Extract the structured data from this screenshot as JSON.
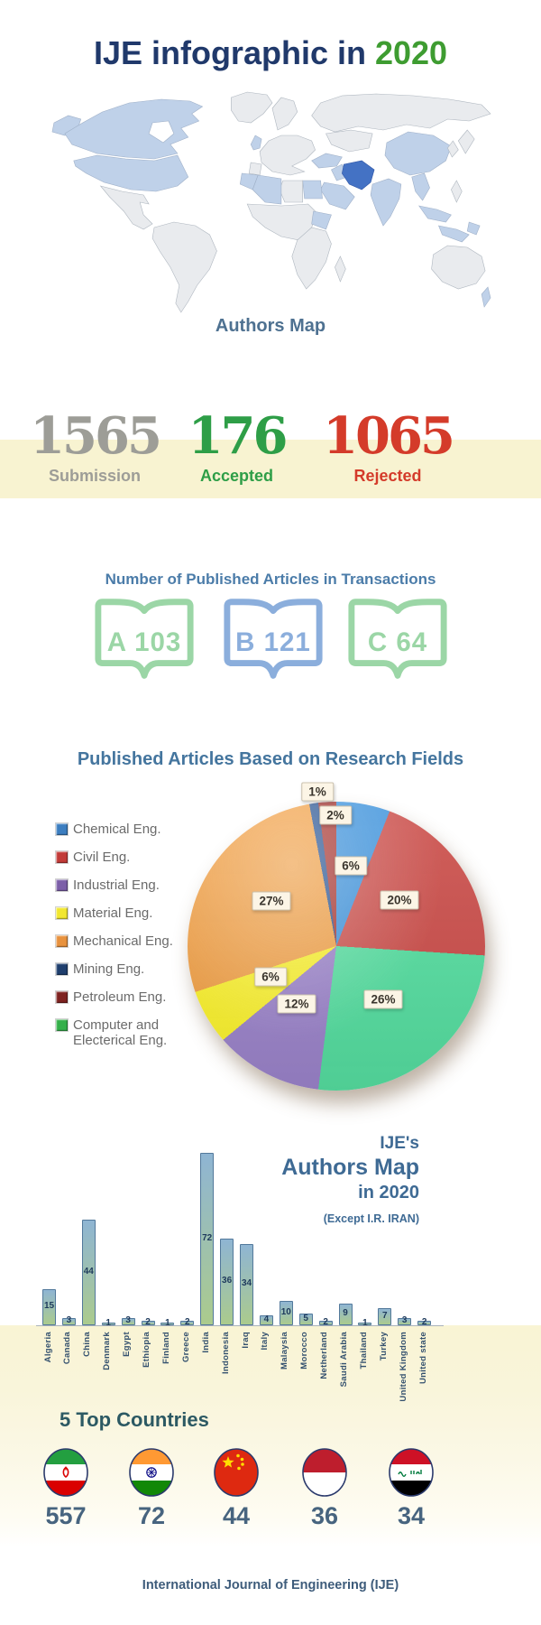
{
  "title": {
    "prefix": "IJE infographic in ",
    "year": "2020"
  },
  "map": {
    "caption": "Authors Map",
    "colors": {
      "land": "#E9EBEE",
      "border": "#AEB6BF",
      "highlight": "#BFD1E9",
      "iran": "#4472C4"
    }
  },
  "stats": [
    {
      "value": "1565",
      "label": "Submission",
      "color": "#9D9D97"
    },
    {
      "value": "176",
      "label": "Accepted",
      "color": "#2E9E47"
    },
    {
      "value": "1065",
      "label": "Rejected",
      "color": "#D43B2A"
    }
  ],
  "transactions": {
    "heading": "Number of Published Articles in Transactions",
    "books": [
      {
        "letter": "A",
        "count": "103",
        "color": "#9BD6A6"
      },
      {
        "letter": "B",
        "count": "121",
        "color": "#8BAEDC"
      },
      {
        "letter": "C",
        "count": "64",
        "color": "#9BD6A6"
      }
    ]
  },
  "pie": {
    "heading": "Published Articles Based on Research Fields",
    "legend": [
      {
        "label": "Chemical Eng.",
        "color": "#3C7EC0"
      },
      {
        "label": "Civil Eng.",
        "color": "#C23B38"
      },
      {
        "label": "Industrial Eng.",
        "color": "#7C5FA8"
      },
      {
        "label": "Material Eng.",
        "color": "#F2E730"
      },
      {
        "label": "Mechanical Eng.",
        "color": "#E8923E"
      },
      {
        "label": "Mining Eng.",
        "color": "#1F3F6E"
      },
      {
        "label": "Petroleum Eng.",
        "color": "#7E2220"
      },
      {
        "label": "Computer and",
        "label2": "Electerical Eng.",
        "color": "#34B04A"
      }
    ],
    "slices": [
      {
        "field": "Chemical Eng.",
        "pct": 6,
        "color": "#3E93DC",
        "label": "6%"
      },
      {
        "field": "Civil Eng.",
        "pct": 20,
        "color": "#CC4E4A",
        "label": "20%"
      },
      {
        "field": "Computer and Electerical Eng.",
        "pct": 26,
        "color": "#56DFA1",
        "label": "26%"
      },
      {
        "field": "Industrial Eng.",
        "pct": 12,
        "color": "#9C84CB",
        "label": "12%"
      },
      {
        "field": "Material Eng.",
        "pct": 6,
        "color": "#FCF32F",
        "label": "6%"
      },
      {
        "field": "Mechanical Eng.",
        "pct": 27,
        "color": "#F2A147",
        "label": "27%"
      },
      {
        "field": "Mining Eng.",
        "pct": 1,
        "color": "#2C5694",
        "label": "1%"
      },
      {
        "field": "Petroleum Eng.",
        "pct": 2,
        "color": "#A83631",
        "label": "2%"
      }
    ]
  },
  "bar_chart": {
    "title_lines": [
      "IJE's",
      "Authors Map",
      "in 2020",
      "(Except I.R. IRAN)"
    ],
    "categories": [
      "Algeria",
      "Canada",
      "China",
      "Denmark",
      "Egypt",
      "Ethiopia",
      "Finland",
      "Greece",
      "India",
      "Indonesia",
      "Iraq",
      "Italy",
      "Malaysia",
      "Morocco",
      "Netherland",
      "Saudi Arabia",
      "Thailand",
      "Turkey",
      "United Kingdom",
      "United state"
    ],
    "values": [
      15,
      3,
      44,
      1,
      3,
      2,
      1,
      2,
      72,
      36,
      34,
      4,
      10,
      5,
      2,
      9,
      1,
      7,
      3,
      2
    ],
    "bar_gradient": [
      "#8FB5D3",
      "#ABCB8D"
    ]
  },
  "top_countries": {
    "heading": "5 Top Countries",
    "entries": [
      {
        "country": "Iran",
        "value": "557"
      },
      {
        "country": "India",
        "value": "72"
      },
      {
        "country": "China",
        "value": "44"
      },
      {
        "country": "Indonesia",
        "value": "36"
      },
      {
        "country": "Iraq",
        "value": "34"
      }
    ]
  },
  "footer": "International Journal of Engineering (IJE)",
  "chart_data": [
    {
      "type": "pie",
      "title": "Published Articles Based on Research Fields",
      "labels": [
        "Chemical Eng.",
        "Civil Eng.",
        "Industrial Eng.",
        "Material Eng.",
        "Mechanical Eng.",
        "Mining Eng.",
        "Petroleum Eng.",
        "Computer and Electerical Eng."
      ],
      "values": [
        6,
        20,
        12,
        6,
        27,
        1,
        2,
        26
      ],
      "unit": "%",
      "legend_position": "left",
      "clockwise_from_top": [
        "Chemical Eng. 6%",
        "Civil Eng. 20%",
        "Computer and Electerical Eng. 26%",
        "Industrial Eng. 12%",
        "Material Eng. 6%",
        "Mechanical Eng. 27%",
        "Mining Eng. 1%",
        "Petroleum Eng. 2%"
      ]
    },
    {
      "type": "bar",
      "title": "IJE's Authors Map in 2020 (Except I.R. IRAN)",
      "categories": [
        "Algeria",
        "Canada",
        "China",
        "Denmark",
        "Egypt",
        "Ethiopia",
        "Finland",
        "Greece",
        "India",
        "Indonesia",
        "Iraq",
        "Italy",
        "Malaysia",
        "Morocco",
        "Netherland",
        "Saudi Arabia",
        "Thailand",
        "Turkey",
        "United Kingdom",
        "United state"
      ],
      "values": [
        15,
        3,
        44,
        1,
        3,
        2,
        1,
        2,
        72,
        36,
        34,
        4,
        10,
        5,
        2,
        9,
        1,
        7,
        3,
        2
      ],
      "ylim": [
        0,
        75
      ],
      "grid": false,
      "value_labels": true
    }
  ]
}
